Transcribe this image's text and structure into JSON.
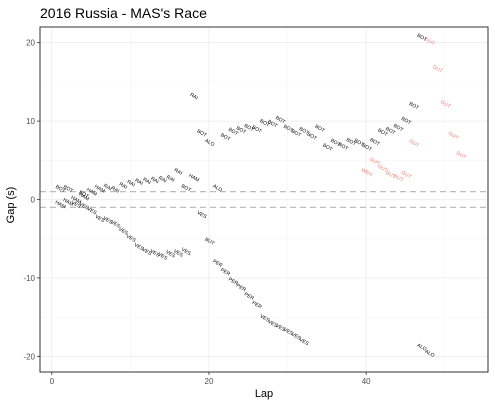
{
  "chart_data": {
    "type": "scatter",
    "title": "2016 Russia - MAS's Race",
    "xlabel": "Lap",
    "ylabel": "Gap (s)",
    "xlim": [
      -1.5,
      55.5
    ],
    "ylim": [
      -22,
      22
    ],
    "x_ticks": [
      0,
      20,
      40
    ],
    "y_ticks": [
      -20,
      -10,
      0,
      10,
      20
    ],
    "grid": true,
    "legend": "none",
    "reference_lines": [
      1.0,
      -1.0
    ],
    "colors": {
      "default_label": "#000000",
      "highlight_label": "#f8766d",
      "reference_line": "#bebebe",
      "grid_major": "#ebebeb",
      "grid_minor": "#f5f5f5",
      "panel_border": "#333333"
    },
    "points": [
      {
        "lap": 1,
        "gap": 1.2,
        "driver": "BOT"
      },
      {
        "lap": 1,
        "gap": -0.8,
        "driver": "HAM"
      },
      {
        "lap": 2,
        "gap": 1.2,
        "driver": "BOT"
      },
      {
        "lap": 2,
        "gap": -0.5,
        "driver": "HAM"
      },
      {
        "lap": 3,
        "gap": -0.2,
        "driver": "HAM"
      },
      {
        "lap": 3,
        "gap": -0.8,
        "driver": "VES"
      },
      {
        "lap": 4,
        "gap": 0.5,
        "driver": "BOT"
      },
      {
        "lap": 4,
        "gap": 0.2,
        "driver": "HAM"
      },
      {
        "lap": 4,
        "gap": -1.0,
        "driver": "VES"
      },
      {
        "lap": 5,
        "gap": 0.8,
        "driver": "HAM"
      },
      {
        "lap": 5,
        "gap": -1.6,
        "driver": "VES"
      },
      {
        "lap": 6,
        "gap": 1.2,
        "driver": "HAM"
      },
      {
        "lap": 6,
        "gap": -2.6,
        "driver": "VES"
      },
      {
        "lap": 7,
        "gap": 1.4,
        "driver": "RAI"
      },
      {
        "lap": 7,
        "gap": -2.8,
        "driver": "VES"
      },
      {
        "lap": 8,
        "gap": 1.1,
        "driver": "RAI"
      },
      {
        "lap": 8,
        "gap": -3.3,
        "driver": "VES"
      },
      {
        "lap": 9,
        "gap": 1.6,
        "driver": "RAI"
      },
      {
        "lap": 9,
        "gap": -4.2,
        "driver": "VES"
      },
      {
        "lap": 10,
        "gap": 1.9,
        "driver": "RAI"
      },
      {
        "lap": 10,
        "gap": -5.1,
        "driver": "VES"
      },
      {
        "lap": 11,
        "gap": 2.1,
        "driver": "RAI"
      },
      {
        "lap": 11,
        "gap": -6.2,
        "driver": "VES"
      },
      {
        "lap": 12,
        "gap": 2.2,
        "driver": "RAI"
      },
      {
        "lap": 12,
        "gap": -6.8,
        "driver": "VES"
      },
      {
        "lap": 13,
        "gap": 2.3,
        "driver": "RAI"
      },
      {
        "lap": 13,
        "gap": -7.0,
        "driver": "VES"
      },
      {
        "lap": 14,
        "gap": 2.4,
        "driver": "RAI"
      },
      {
        "lap": 14,
        "gap": -7.4,
        "driver": "VES"
      },
      {
        "lap": 15,
        "gap": 2.5,
        "driver": "RAI"
      },
      {
        "lap": 15,
        "gap": -7.1,
        "driver": "VES"
      },
      {
        "lap": 16,
        "gap": 3.4,
        "driver": "RAI"
      },
      {
        "lap": 16,
        "gap": -7.0,
        "driver": "VES"
      },
      {
        "lap": 17,
        "gap": 1.3,
        "driver": "BOT"
      },
      {
        "lap": 17,
        "gap": -6.8,
        "driver": "VES"
      },
      {
        "lap": 18,
        "gap": 2.6,
        "driver": "HAM"
      },
      {
        "lap": 18,
        "gap": 13.0,
        "driver": "RAI"
      },
      {
        "lap": 19,
        "gap": -2.1,
        "driver": "VES"
      },
      {
        "lap": 19,
        "gap": 8.3,
        "driver": "BOT"
      },
      {
        "lap": 20,
        "gap": 7.1,
        "driver": "ALO"
      },
      {
        "lap": 20,
        "gap": -5.5,
        "driver": "BUT"
      },
      {
        "lap": 21,
        "gap": 1.3,
        "driver": "ALO"
      },
      {
        "lap": 21,
        "gap": -8.3,
        "driver": "PER"
      },
      {
        "lap": 22,
        "gap": 7.8,
        "driver": "BOT"
      },
      {
        "lap": 22,
        "gap": -9.4,
        "driver": "PER"
      },
      {
        "lap": 23,
        "gap": 8.5,
        "driver": "BOT"
      },
      {
        "lap": 23,
        "gap": -10.6,
        "driver": "PER"
      },
      {
        "lap": 24,
        "gap": 8.7,
        "driver": "BOT"
      },
      {
        "lap": 24,
        "gap": -11.4,
        "driver": "PER"
      },
      {
        "lap": 25,
        "gap": 9.0,
        "driver": "BOT"
      },
      {
        "lap": 25,
        "gap": -12.5,
        "driver": "PER"
      },
      {
        "lap": 26,
        "gap": 8.8,
        "driver": "BOT"
      },
      {
        "lap": 26,
        "gap": -13.6,
        "driver": "PER"
      },
      {
        "lap": 27,
        "gap": 9.6,
        "driver": "BOT"
      },
      {
        "lap": 27,
        "gap": -15.3,
        "driver": "VES"
      },
      {
        "lap": 28,
        "gap": 9.5,
        "driver": "BOT"
      },
      {
        "lap": 28,
        "gap": -16.0,
        "driver": "VES"
      },
      {
        "lap": 29,
        "gap": 10.0,
        "driver": "BOT"
      },
      {
        "lap": 29,
        "gap": -16.5,
        "driver": "VES"
      },
      {
        "lap": 30,
        "gap": 8.9,
        "driver": "BOT"
      },
      {
        "lap": 30,
        "gap": -17.0,
        "driver": "VES"
      },
      {
        "lap": 31,
        "gap": 8.3,
        "driver": "BOT"
      },
      {
        "lap": 31,
        "gap": -17.6,
        "driver": "VES"
      },
      {
        "lap": 32,
        "gap": 8.6,
        "driver": "BOT"
      },
      {
        "lap": 32,
        "gap": -18.3,
        "driver": "VES"
      },
      {
        "lap": 33,
        "gap": 7.9,
        "driver": "BOT"
      },
      {
        "lap": 34,
        "gap": 8.9,
        "driver": "BOT"
      },
      {
        "lap": 35,
        "gap": 6.5,
        "driver": "BOT"
      },
      {
        "lap": 36,
        "gap": 7.1,
        "driver": "BOT"
      },
      {
        "lap": 37,
        "gap": 6.6,
        "driver": "BOT"
      },
      {
        "lap": 38,
        "gap": 7.2,
        "driver": "BOT"
      },
      {
        "lap": 39,
        "gap": 7.1,
        "driver": "BOT"
      },
      {
        "lap": 40,
        "gap": 6.5,
        "driver": "BOT"
      },
      {
        "lap": 41,
        "gap": 7.2,
        "driver": "BOT"
      },
      {
        "lap": 42,
        "gap": 8.4,
        "driver": "BOT"
      },
      {
        "lap": 43,
        "gap": 8.6,
        "driver": "BOT"
      },
      {
        "lap": 44,
        "gap": 9.0,
        "driver": "BOT"
      },
      {
        "lap": 45,
        "gap": 9.9,
        "driver": "BOT"
      },
      {
        "lap": 46,
        "gap": 11.8,
        "driver": "BOT"
      },
      {
        "lap": 47,
        "gap": 20.5,
        "driver": "BOT"
      },
      {
        "lap": 40,
        "gap": 3.3,
        "driver": "WEH",
        "highlight": true
      },
      {
        "lap": 41,
        "gap": 4.7,
        "driver": "GUT",
        "highlight": true
      },
      {
        "lap": 42,
        "gap": 3.8,
        "driver": "GUT",
        "highlight": true
      },
      {
        "lap": 43,
        "gap": 3.0,
        "driver": "GUT",
        "highlight": true
      },
      {
        "lap": 44,
        "gap": 2.6,
        "driver": "GUT",
        "highlight": true
      },
      {
        "lap": 45,
        "gap": 3.0,
        "driver": "GUT",
        "highlight": true
      },
      {
        "lap": 46,
        "gap": 7.0,
        "driver": "GUT",
        "highlight": true
      },
      {
        "lap": 48,
        "gap": 20.0,
        "driver": "GUT",
        "highlight": true
      },
      {
        "lap": 49,
        "gap": 16.5,
        "driver": "GUT",
        "highlight": true
      },
      {
        "lap": 50,
        "gap": 12.0,
        "driver": "GUT",
        "highlight": true
      },
      {
        "lap": 51,
        "gap": 8.0,
        "driver": "GUT",
        "highlight": true
      },
      {
        "lap": 52,
        "gap": 5.5,
        "driver": "GUT",
        "highlight": true
      },
      {
        "lap": 47,
        "gap": -19.0,
        "driver": "ALO"
      },
      {
        "lap": 48,
        "gap": -19.8,
        "driver": "ALO"
      }
    ]
  }
}
